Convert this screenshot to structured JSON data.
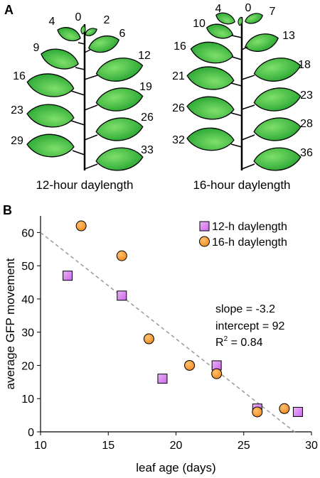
{
  "panel_a": {
    "label": "A",
    "plants": [
      {
        "caption": "12-hour daylength",
        "left_ages": [
          "0",
          "4",
          "9",
          "16",
          "23",
          "29"
        ],
        "right_ages": [
          "2",
          "6",
          "12",
          "19",
          "26",
          "33"
        ]
      },
      {
        "caption": "16-hour daylength",
        "left_ages": [
          "0",
          "4",
          "10",
          "16",
          "21",
          "26",
          "32"
        ],
        "right_ages": [
          "7",
          "13",
          "18",
          "23",
          "28",
          "36"
        ]
      }
    ]
  },
  "panel_b": {
    "label": "B",
    "legend": {
      "entries": [
        "12-h daylength",
        "16-h daylength"
      ]
    },
    "stats": {
      "slope": "slope = -3.2",
      "intercept": "intercept = 92",
      "r2_prefix": "R",
      "r2_sup": "2",
      "r2_value": " = 0.84"
    }
  },
  "colors": {
    "leaf_light": "#7ee06a",
    "leaf_dark": "#1e9e2c",
    "square_fill": "#cc66ee",
    "square_light": "#e9b3f7",
    "circle_fill": "#f28c1e",
    "circle_light": "#ffc070",
    "trendline": "#999999"
  },
  "chart_data": {
    "type": "scatter",
    "title": "",
    "xlabel": "leaf age (days)",
    "ylabel": "average GFP movement",
    "xlim": [
      10,
      30
    ],
    "ylim": [
      0,
      65
    ],
    "xticks": [
      10,
      15,
      20,
      25,
      30
    ],
    "yticks": [
      0,
      10,
      20,
      30,
      40,
      50,
      60
    ],
    "grid": false,
    "legend_position": "top-right",
    "series": [
      {
        "name": "12-h daylength",
        "marker": "square",
        "points": [
          [
            12,
            47
          ],
          [
            16,
            41
          ],
          [
            19,
            16
          ],
          [
            23,
            20
          ],
          [
            26,
            7
          ],
          [
            29,
            6
          ]
        ]
      },
      {
        "name": "16-h daylength",
        "marker": "circle",
        "points": [
          [
            13,
            62
          ],
          [
            16,
            53
          ],
          [
            18,
            28
          ],
          [
            21,
            20
          ],
          [
            23,
            17.5
          ],
          [
            26,
            6
          ],
          [
            28,
            7
          ]
        ]
      }
    ],
    "trendline": {
      "slope": -3.2,
      "intercept": 92,
      "r2": 0.84,
      "style": "dashed",
      "x_range": [
        10,
        28.8
      ]
    }
  }
}
